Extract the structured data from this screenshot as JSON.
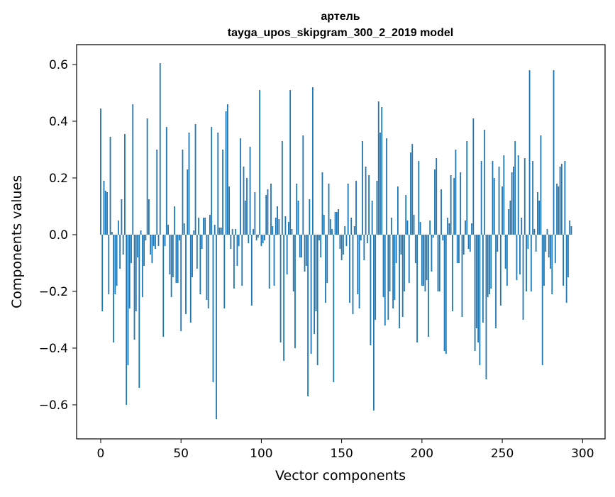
{
  "chart_data": {
    "type": "bar",
    "title": "артель",
    "subtitle": "tayga_upos_skipgram_300_2_2019 model",
    "xlabel": "Vector components",
    "ylabel": "Components values",
    "xlim": [
      -15,
      314
    ],
    "ylim": [
      -0.72,
      0.67
    ],
    "xticks": [
      0,
      50,
      100,
      150,
      200,
      250,
      300
    ],
    "yticks": [
      -0.6,
      -0.4,
      -0.2,
      0.0,
      0.2,
      0.4,
      0.6
    ],
    "xtick_labels": [
      "0",
      "50",
      "100",
      "150",
      "200",
      "250",
      "300"
    ],
    "ytick_labels": [
      "−0.6",
      "−0.4",
      "−0.2",
      "0.0",
      "0.2",
      "0.4",
      "0.6"
    ],
    "grid": false,
    "bar_color": "#1f77b4",
    "values": [
      0.445,
      -0.27,
      0.19,
      0.155,
      0.15,
      -0.21,
      0.345,
      0.01,
      -0.38,
      -0.21,
      -0.18,
      0.05,
      -0.12,
      0.125,
      -0.07,
      0.355,
      -0.6,
      -0.46,
      -0.26,
      -0.1,
      0.46,
      -0.37,
      -0.27,
      -0.08,
      -0.54,
      0.015,
      -0.22,
      -0.11,
      -0.02,
      0.41,
      0.125,
      -0.07,
      -0.1,
      -0.04,
      -0.05,
      0.3,
      -0.04,
      0.605,
      0.0,
      -0.36,
      -0.04,
      0.38,
      0.035,
      -0.14,
      -0.22,
      -0.15,
      0.1,
      -0.17,
      -0.17,
      -0.02,
      -0.34,
      0.3,
      0.04,
      -0.28,
      0.23,
      0.36,
      -0.31,
      -0.15,
      0.015,
      0.39,
      -0.12,
      0.06,
      -0.21,
      -0.05,
      0.06,
      0.06,
      -0.23,
      -0.26,
      0.07,
      0.38,
      -0.52,
      0.035,
      -0.65,
      0.36,
      0.025,
      0.025,
      0.3,
      -0.26,
      0.435,
      0.46,
      0.17,
      -0.05,
      0.02,
      -0.19,
      0.02,
      -0.11,
      -0.04,
      0.34,
      -0.18,
      0.24,
      0.12,
      0.2,
      -0.03,
      0.31,
      -0.25,
      0.02,
      0.15,
      -0.02,
      -0.01,
      0.51,
      -0.04,
      -0.03,
      -0.02,
      0.14,
      0.16,
      -0.19,
      0.18,
      0.03,
      -0.18,
      0.06,
      0.1,
      0.055,
      -0.38,
      0.33,
      -0.445,
      0.065,
      -0.14,
      0.045,
      0.51,
      0.02,
      -0.2,
      -0.4,
      0.18,
      0.12,
      -0.08,
      -0.08,
      0.35,
      -0.13,
      -0.11,
      -0.57,
      0.125,
      -0.42,
      0.52,
      -0.35,
      -0.27,
      -0.46,
      -0.02,
      -0.08,
      0.22,
      0.07,
      -0.24,
      -0.17,
      0.18,
      0.055,
      0.02,
      -0.52,
      0.08,
      0.08,
      0.09,
      -0.05,
      -0.09,
      -0.07,
      0.03,
      -0.04,
      0.18,
      -0.24,
      0.06,
      -0.28,
      0.03,
      0.19,
      -0.21,
      -0.26,
      -0.02,
      0.33,
      -0.09,
      0.24,
      -0.03,
      0.21,
      -0.39,
      0.12,
      -0.62,
      -0.3,
      0.19,
      0.47,
      0.36,
      0.45,
      -0.22,
      -0.32,
      0.34,
      -0.3,
      -0.2,
      0.06,
      -0.26,
      -0.23,
      -0.1,
      0.17,
      -0.33,
      -0.07,
      -0.29,
      -0.2,
      0.14,
      0.05,
      -0.17,
      0.29,
      0.32,
      0.07,
      -0.1,
      -0.38,
      0.26,
      0.045,
      -0.18,
      -0.18,
      -0.2,
      -0.16,
      -0.36,
      0.05,
      -0.13,
      -0.01,
      0.23,
      0.27,
      -0.2,
      -0.2,
      0.16,
      -0.02,
      -0.41,
      -0.42,
      0.06,
      0.04,
      0.21,
      -0.27,
      0.2,
      0.3,
      -0.1,
      -0.1,
      0.22,
      -0.29,
      -0.07,
      0.05,
      0.33,
      -0.05,
      -0.06,
      0.04,
      0.41,
      -0.41,
      -0.33,
      -0.38,
      -0.46,
      0.26,
      -0.31,
      0.37,
      -0.51,
      -0.22,
      -0.21,
      -0.19,
      0.26,
      0.2,
      -0.33,
      -0.06,
      0.24,
      -0.25,
      0.17,
      0.28,
      -0.12,
      -0.18,
      0.09,
      0.12,
      0.22,
      0.24,
      0.33,
      -0.16,
      0.28,
      -0.14,
      0.06,
      -0.3,
      0.27,
      -0.2,
      -0.05,
      0.58,
      -0.2,
      0.26,
      0.02,
      -0.06,
      0.15,
      0.12,
      0.35,
      -0.46,
      -0.18,
      -0.06,
      0.02,
      -0.08,
      -0.12,
      -0.21,
      0.58,
      -0.1,
      0.18,
      0.17,
      0.24,
      0.25,
      -0.18,
      0.26,
      -0.24,
      -0.15,
      0.05,
      0.03,
      0.0,
      0.0,
      0.0
    ]
  }
}
